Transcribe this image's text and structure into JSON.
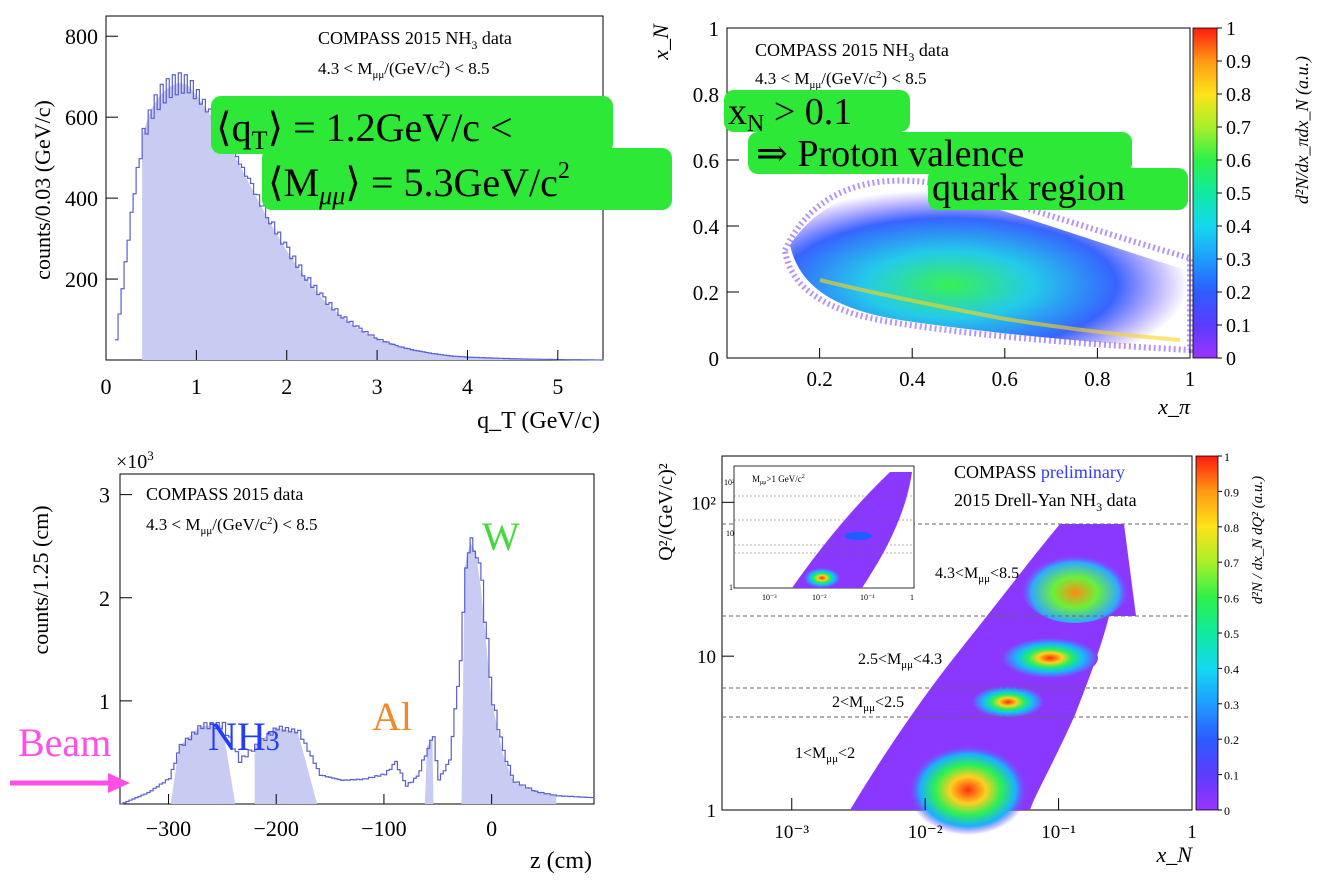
{
  "colors": {
    "fill": "#c8cbf2",
    "line": "#5a5fd0",
    "green": "#2ee838",
    "pink": "#ff4fe6",
    "blue": "#1f3cff",
    "orange": "#f0892a",
    "wgreen": "#45d83c"
  },
  "panel1": {
    "header": "COMPASS 2015 NH",
    "header_sub": "3",
    "header_tail": " data",
    "cut": "4.3 < M",
    "cut_sub": "μμ",
    "cut_tail": "/(GeV/c",
    "cut_sup": "2",
    "cut_end": ") < 8.5",
    "annotation_line1": "⟨q",
    "annotation_line1_sub": "T",
    "annotation_line1_tail": "⟩ = 1.2GeV/c <",
    "annotation_line2": "⟨M",
    "annotation_line2_sub": "μμ",
    "annotation_line2_tail": "⟩ = 5.3GeV/c",
    "annotation_line2_sup": "2"
  },
  "panel2": {
    "header": "COMPASS 2015 NH",
    "header_sub": "3",
    "header_tail": " data",
    "cut": "4.3 < M",
    "cut_sub": "μμ",
    "cut_tail": "/(GeV/c",
    "cut_sup": "2",
    "cut_end": ") < 8.5",
    "ann1": "x",
    "ann1_sub": "N",
    "ann1_tail": " > 0.1",
    "ann2": "⇒ Proton valence",
    "ann3": "quark region",
    "colorbar_label": "d²N/dx_πdx_N (a.u.)"
  },
  "panel3": {
    "header": "COMPASS 2015 data",
    "cut": "4.3 < M",
    "cut_sub": "μμ",
    "cut_tail": "/(GeV/c",
    "cut_sup": "2",
    "cut_end": ") < 8.5",
    "scale": "×10",
    "scale_sup": "3",
    "label_w": "W",
    "label_al": "Al",
    "label_nh3": "NH",
    "label_nh3_sub": "3",
    "label_beam": "Beam"
  },
  "panel4": {
    "header_a": "COMPASS",
    "header_b": " preliminary",
    "header2": "2015 Drell-Yan NH",
    "header2_sub": "3",
    "header2_tail": " data",
    "inset_label": "M",
    "inset_label_sub": "μμ",
    "inset_label_tail": ">1 GeV/c",
    "inset_label_sup": "2",
    "bins": [
      {
        "lo": "4.3<M",
        "sub": "μμ",
        "hi": "<8.5"
      },
      {
        "lo": "2.5<M",
        "sub": "μμ",
        "hi": "<4.3"
      },
      {
        "lo": "2<M",
        "sub": "μμ",
        "hi": "<2.5"
      },
      {
        "lo": "1<M",
        "sub": "μμ",
        "hi": "<2"
      }
    ],
    "colorbar_label": "d²N / dx_N dQ² (a.u.)"
  },
  "chart_data": [
    {
      "type": "bar",
      "title": "COMPASS 2015 NH3 data",
      "xlabel": "q_T (GeV/c)",
      "ylabel": "counts/0.03 (GeV/c)",
      "xlim": [
        0,
        5.5
      ],
      "ylim": [
        0,
        850
      ],
      "xticks": [
        "0",
        "1",
        "2",
        "3",
        "4",
        "5"
      ],
      "yticks": [
        "200",
        "400",
        "600",
        "800"
      ],
      "series": [
        {
          "name": "histogram",
          "x": [
            0.1,
            0.2,
            0.3,
            0.4,
            0.5,
            0.6,
            0.7,
            0.8,
            0.9,
            1.0,
            1.2,
            1.4,
            1.6,
            1.8,
            2.0,
            2.2,
            2.4,
            2.6,
            2.8,
            3.0,
            3.2,
            3.4,
            3.6,
            3.8,
            4.0,
            4.5,
            5.0,
            5.5
          ],
          "values": [
            50,
            240,
            420,
            555,
            620,
            655,
            675,
            685,
            680,
            655,
            590,
            515,
            430,
            345,
            270,
            205,
            150,
            108,
            76,
            52,
            35,
            24,
            16,
            10,
            7,
            3,
            1,
            0
          ]
        }
      ]
    },
    {
      "type": "heatmap",
      "title": "COMPASS 2015 NH3 data",
      "xlabel": "x_π",
      "ylabel": "x_N",
      "xlim": [
        0,
        1
      ],
      "ylim": [
        0,
        1
      ],
      "zlim": [
        0,
        1
      ],
      "xticks": [
        "0",
        "0.2",
        "0.4",
        "0.6",
        "0.8",
        "1"
      ],
      "yticks": [
        "0",
        "0.2",
        "0.4",
        "0.6",
        "0.8",
        "1"
      ],
      "zticks": [
        "0",
        "0.1",
        "0.2",
        "0.3",
        "0.4",
        "0.5",
        "0.6",
        "0.7",
        "0.8",
        "0.9",
        "1"
      ]
    },
    {
      "type": "bar",
      "title": "COMPASS 2015 data",
      "xlabel": "z (cm)",
      "ylabel": "counts/1.25 (cm)",
      "xlim": [
        -345,
        95
      ],
      "ylim": [
        0,
        3200
      ],
      "xticks": [
        "−300",
        "−200",
        "−100",
        "0"
      ],
      "yticks": [
        "1",
        "2",
        "3"
      ],
      "series": [
        {
          "name": "histogram",
          "x": [
            -345,
            -320,
            -300,
            -290,
            -270,
            -250,
            -235,
            -220,
            -200,
            -180,
            -160,
            -140,
            -120,
            -100,
            -90,
            -80,
            -70,
            -60,
            -55,
            -50,
            -40,
            -30,
            -25,
            -20,
            -15,
            -10,
            0,
            10,
            20,
            40,
            60,
            95
          ],
          "values": [
            0,
            110,
            250,
            560,
            760,
            760,
            420,
            560,
            740,
            700,
            280,
            230,
            240,
            290,
            400,
            180,
            260,
            560,
            630,
            240,
            420,
            1400,
            2300,
            2540,
            2450,
            2100,
            1000,
            500,
            220,
            120,
            80,
            60
          ]
        }
      ]
    },
    {
      "type": "heatmap",
      "title": "COMPASS preliminary",
      "xlabel": "x_N",
      "ylabel": "Q²/(GeV/c)²",
      "xscale": "log",
      "yscale": "log",
      "xlim": [
        0.0003,
        1
      ],
      "ylim": [
        1,
        200
      ],
      "zlim": [
        0,
        1
      ],
      "xticks": [
        "10⁻³",
        "10⁻²",
        "10⁻¹",
        "1"
      ],
      "yticks": [
        "1",
        "10",
        "10²"
      ],
      "zticks": [
        "0",
        "0.1",
        "0.2",
        "0.3",
        "0.4",
        "0.5",
        "0.6",
        "0.7",
        "0.8",
        "0.9",
        "1"
      ]
    }
  ]
}
